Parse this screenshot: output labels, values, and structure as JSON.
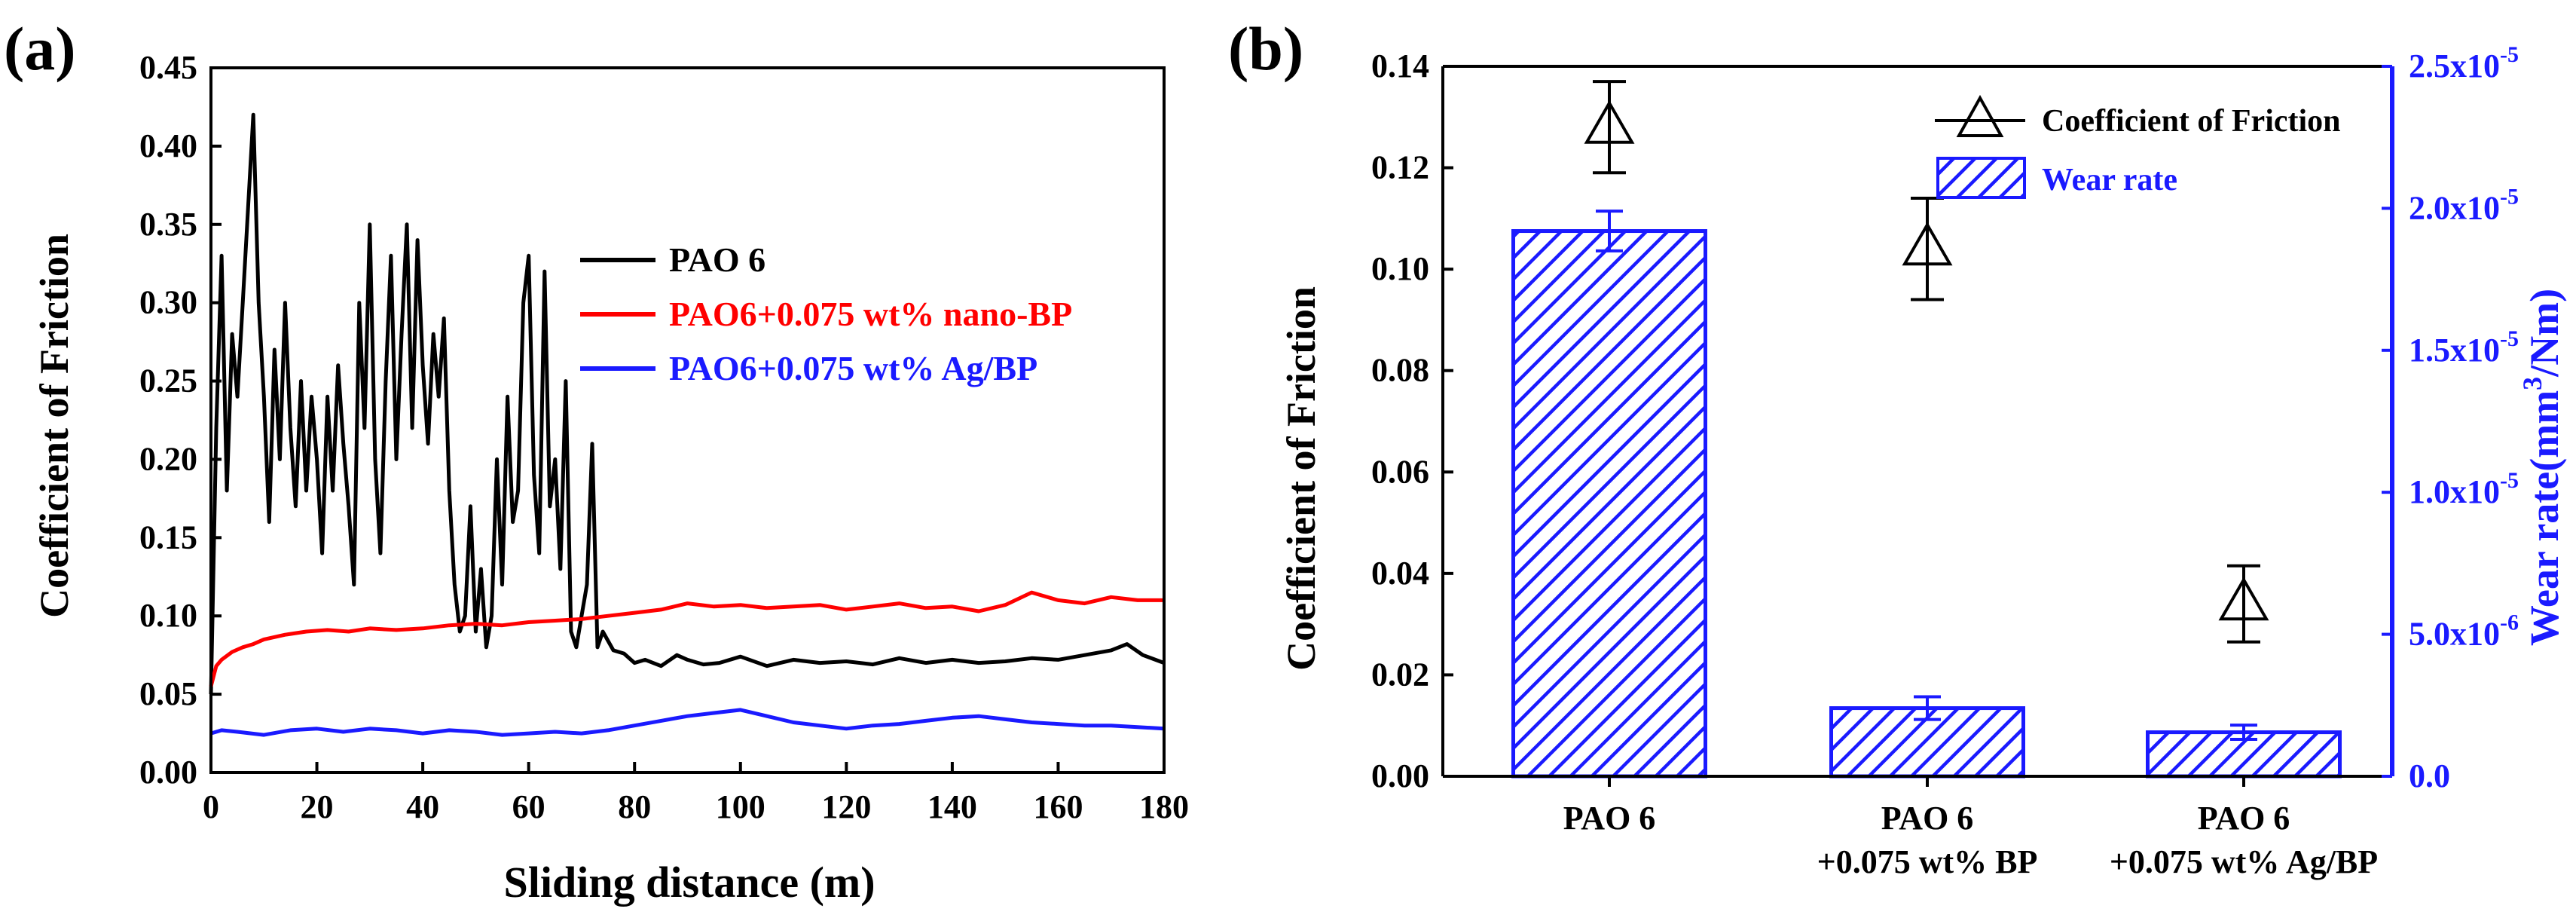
{
  "colors": {
    "black": "#000000",
    "red": "#ff0000",
    "blue": "#1a1aff",
    "axis": "#000000"
  },
  "chart_data": [
    {
      "panel": "(a)",
      "type": "line",
      "xlabel": "Sliding distance (m)",
      "ylabel": "Coefficient of Friction",
      "xlim": [
        0,
        180
      ],
      "ylim": [
        0,
        0.45
      ],
      "xticks": [
        "0",
        "20",
        "40",
        "60",
        "80",
        "100",
        "120",
        "140",
        "160",
        "180"
      ],
      "yticks": [
        "0.00",
        "0.05",
        "0.10",
        "0.15",
        "0.20",
        "0.25",
        "0.30",
        "0.35",
        "0.40",
        "0.45"
      ],
      "legend_position": "center-right",
      "series": [
        {
          "name": "PAO 6",
          "color": "#000000",
          "x": [
            0,
            1,
            2,
            3,
            4,
            5,
            6,
            7,
            8,
            9,
            10,
            11,
            12,
            13,
            14,
            15,
            16,
            17,
            18,
            19,
            20,
            21,
            22,
            23,
            24,
            25,
            26,
            27,
            28,
            29,
            30,
            31,
            32,
            33,
            34,
            35,
            36,
            37,
            38,
            39,
            40,
            41,
            42,
            43,
            44,
            45,
            46,
            47,
            48,
            49,
            50,
            51,
            52,
            53,
            54,
            55,
            56,
            57,
            58,
            59,
            60,
            61,
            62,
            63,
            64,
            65,
            66,
            67,
            68,
            69,
            70,
            71,
            72,
            73,
            74,
            76,
            78,
            80,
            82,
            85,
            88,
            90,
            93,
            96,
            100,
            105,
            110,
            115,
            120,
            125,
            130,
            135,
            140,
            145,
            150,
            155,
            160,
            165,
            170,
            173,
            176,
            180
          ],
          "y": [
            0.05,
            0.22,
            0.33,
            0.18,
            0.28,
            0.24,
            0.3,
            0.36,
            0.42,
            0.3,
            0.24,
            0.16,
            0.27,
            0.2,
            0.3,
            0.22,
            0.17,
            0.25,
            0.18,
            0.24,
            0.2,
            0.14,
            0.24,
            0.18,
            0.26,
            0.21,
            0.17,
            0.12,
            0.3,
            0.22,
            0.35,
            0.2,
            0.14,
            0.25,
            0.33,
            0.2,
            0.28,
            0.35,
            0.22,
            0.34,
            0.26,
            0.21,
            0.28,
            0.24,
            0.29,
            0.18,
            0.12,
            0.09,
            0.1,
            0.17,
            0.09,
            0.13,
            0.08,
            0.1,
            0.2,
            0.12,
            0.24,
            0.16,
            0.18,
            0.3,
            0.33,
            0.19,
            0.14,
            0.32,
            0.17,
            0.2,
            0.13,
            0.25,
            0.09,
            0.08,
            0.1,
            0.12,
            0.21,
            0.08,
            0.09,
            0.078,
            0.076,
            0.07,
            0.072,
            0.068,
            0.075,
            0.072,
            0.069,
            0.07,
            0.074,
            0.068,
            0.072,
            0.07,
            0.071,
            0.069,
            0.073,
            0.07,
            0.072,
            0.07,
            0.071,
            0.073,
            0.072,
            0.075,
            0.078,
            0.082,
            0.075,
            0.07
          ]
        },
        {
          "name": "PAO6+0.075 wt% nano-BP",
          "color": "#ff0000",
          "x": [
            0,
            1,
            2,
            4,
            6,
            8,
            10,
            14,
            18,
            22,
            26,
            30,
            35,
            40,
            45,
            50,
            55,
            60,
            65,
            70,
            75,
            80,
            85,
            90,
            95,
            100,
            105,
            110,
            115,
            120,
            125,
            130,
            135,
            140,
            145,
            150,
            155,
            160,
            165,
            170,
            175,
            180
          ],
          "y": [
            0.055,
            0.068,
            0.072,
            0.077,
            0.08,
            0.082,
            0.085,
            0.088,
            0.09,
            0.091,
            0.09,
            0.092,
            0.091,
            0.092,
            0.094,
            0.095,
            0.094,
            0.096,
            0.097,
            0.098,
            0.1,
            0.102,
            0.104,
            0.108,
            0.106,
            0.107,
            0.105,
            0.106,
            0.107,
            0.104,
            0.106,
            0.108,
            0.105,
            0.106,
            0.103,
            0.107,
            0.115,
            0.11,
            0.108,
            0.112,
            0.11,
            0.11
          ]
        },
        {
          "name": "PAO6+0.075 wt% Ag/BP",
          "color": "#1a1aff",
          "x": [
            0,
            2,
            5,
            10,
            15,
            20,
            25,
            30,
            35,
            40,
            45,
            50,
            55,
            60,
            65,
            70,
            75,
            80,
            85,
            90,
            95,
            100,
            105,
            110,
            115,
            120,
            125,
            130,
            135,
            140,
            145,
            150,
            155,
            160,
            165,
            170,
            175,
            180
          ],
          "y": [
            0.025,
            0.027,
            0.026,
            0.024,
            0.027,
            0.028,
            0.026,
            0.028,
            0.027,
            0.025,
            0.027,
            0.026,
            0.024,
            0.025,
            0.026,
            0.025,
            0.027,
            0.03,
            0.033,
            0.036,
            0.038,
            0.04,
            0.036,
            0.032,
            0.03,
            0.028,
            0.03,
            0.031,
            0.033,
            0.035,
            0.036,
            0.034,
            0.032,
            0.031,
            0.03,
            0.03,
            0.029,
            0.028
          ]
        }
      ]
    },
    {
      "panel": "(b)",
      "type": "bar",
      "categories": [
        "PAO 6",
        "PAO 6\n+0.075 wt% BP",
        "PAO 6\n+0.075 wt% Ag/BP"
      ],
      "category_lines": [
        [
          "PAO 6"
        ],
        [
          "PAO 6",
          "+0.075 wt% BP"
        ],
        [
          "PAO 6",
          "+0.075 wt% Ag/BP"
        ]
      ],
      "ylabel": "Coefficient of Friction",
      "ylim": [
        0,
        0.14
      ],
      "yticks": [
        "0.00",
        "0.02",
        "0.04",
        "0.06",
        "0.08",
        "0.10",
        "0.12",
        "0.14"
      ],
      "y2label_prefix": "Wear rate(mm",
      "y2label_sup": "3",
      "y2label_suffix": "/Nm)",
      "y2lim": [
        0,
        2.5e-05
      ],
      "y2ticks": [
        {
          "mant": "0.0",
          "exp": ""
        },
        {
          "mant": "5.0x10",
          "exp": "-6"
        },
        {
          "mant": "1.0x10",
          "exp": "-5"
        },
        {
          "mant": "1.5x10",
          "exp": "-5"
        },
        {
          "mant": "2.0x10",
          "exp": "-5"
        },
        {
          "mant": "2.5x10",
          "exp": "-5"
        }
      ],
      "legend_position": "top-right",
      "series": [
        {
          "name": "Coefficient of Friction",
          "axis": "left",
          "marker": "open-triangle",
          "color": "#000000",
          "values": [
            0.128,
            0.104,
            0.034
          ],
          "errors": [
            0.009,
            0.01,
            0.0075
          ]
        },
        {
          "name": "Wear rate",
          "axis": "right",
          "style": "hatched-bar",
          "color": "#1a1aff",
          "values": [
            1.92e-05,
            2.4e-06,
            1.55e-06
          ],
          "errors": [
            7e-07,
            4e-07,
            2.5e-07
          ]
        }
      ]
    }
  ]
}
